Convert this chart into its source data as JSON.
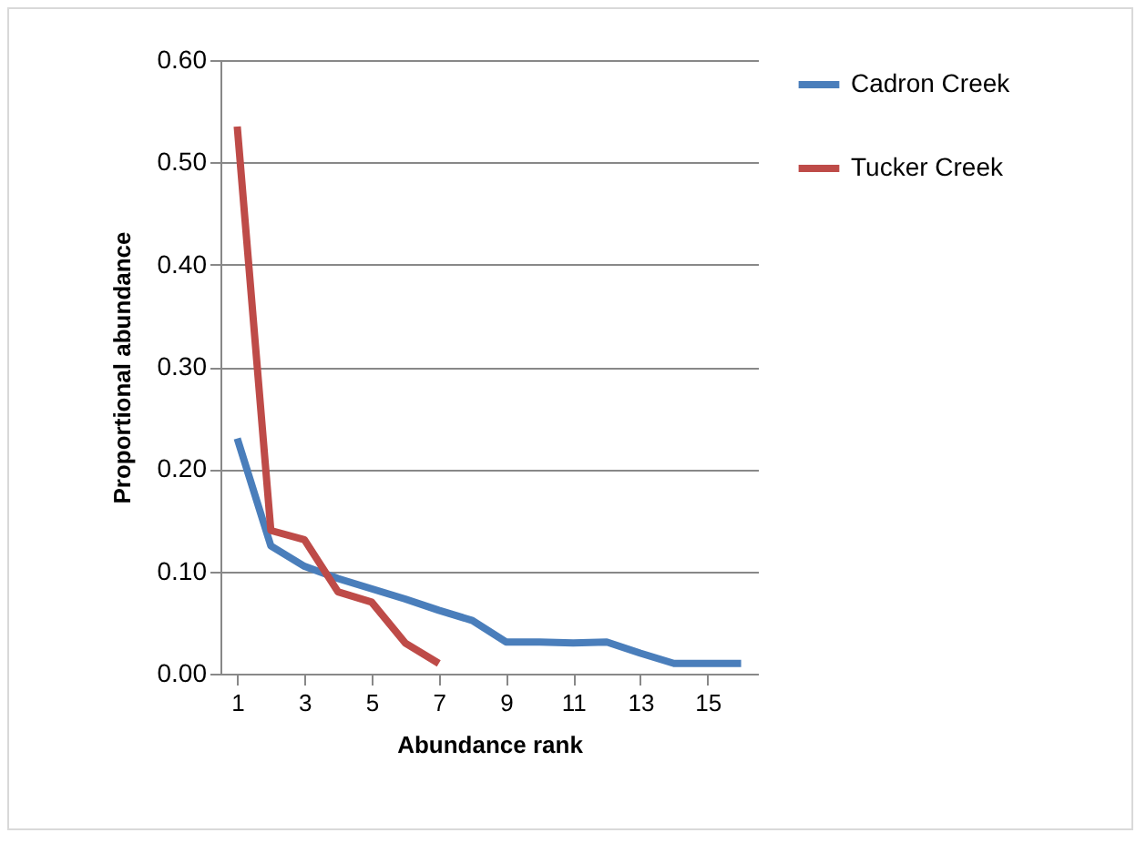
{
  "chart_data": {
    "type": "line",
    "xlabel": "Abundance rank",
    "ylabel": "Proportional abundance",
    "x": [
      1,
      2,
      3,
      4,
      5,
      6,
      7,
      8,
      9,
      10,
      11,
      12,
      13,
      14,
      15,
      16
    ],
    "xlim": [
      0.5,
      16.5
    ],
    "xticks": [
      1,
      3,
      5,
      7,
      9,
      11,
      13,
      15
    ],
    "series": [
      {
        "name": "Cadron Creek",
        "color": "#4a7ebb",
        "values": [
          0.23,
          0.125,
          0.105,
          0.093,
          0.083,
          0.073,
          0.062,
          0.052,
          0.031,
          0.031,
          0.03,
          0.031,
          0.02,
          0.01,
          0.01,
          0.01
        ]
      },
      {
        "name": "Tucker Creek",
        "color": "#be4b48",
        "values": [
          0.535,
          0.14,
          0.131,
          0.08,
          0.07,
          0.03,
          0.01,
          null,
          null,
          null,
          null,
          null,
          null,
          null,
          null,
          null
        ]
      }
    ],
    "ylim": [
      0,
      0.6
    ],
    "yticks": [
      {
        "value": 0,
        "label": "0.00"
      },
      {
        "value": 0.1,
        "label": "0.10"
      },
      {
        "value": 0.2,
        "label": "0.20"
      },
      {
        "value": 0.3,
        "label": "0.30"
      },
      {
        "value": 0.4,
        "label": "0.40"
      },
      {
        "value": 0.5,
        "label": "0.50"
      },
      {
        "value": 0.6,
        "label": "0.60"
      }
    ],
    "grid": "y",
    "legend": "right",
    "marker": "none",
    "line_style": "solid"
  }
}
